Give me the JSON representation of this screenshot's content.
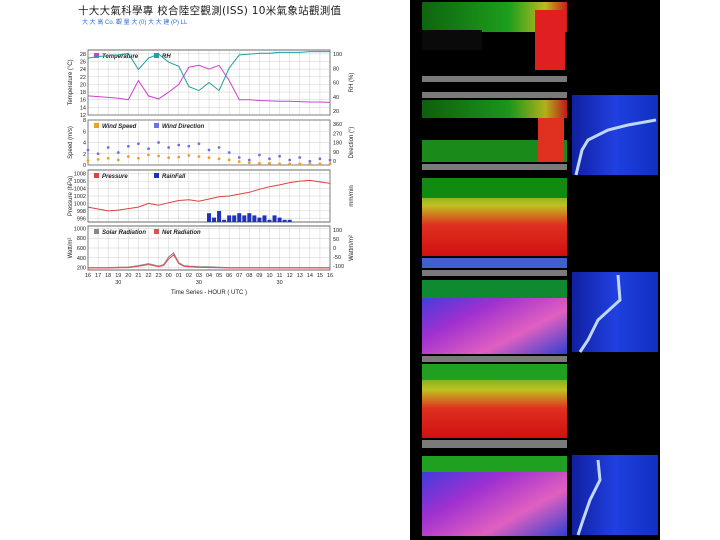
{
  "header": {
    "title": "十大大氣科學專 校合陸空觀測(ISS) 10米氣象站觀測值",
    "subtitle": "大 大 高   Co.    觀 量 大  (0)   大   大     建     (P)   LL"
  },
  "chart_data": [
    {
      "type": "line",
      "panel": "temperature-rh",
      "ylabel_left": "Temperature (°C)",
      "ylabel_right": "RH (%)",
      "legend": [
        "Temperature",
        "RH"
      ],
      "yticks_left": [
        28,
        26,
        24,
        22,
        20,
        18,
        16,
        14,
        12
      ],
      "yticks_right": [
        100,
        80,
        60,
        40,
        20
      ],
      "ylim_left": [
        12,
        29
      ],
      "ylim_right": [
        20,
        100
      ],
      "series": [
        {
          "name": "Temperature",
          "color": "#d040d0",
          "x": [
            0,
            4,
            8,
            12,
            16,
            20,
            24,
            28,
            32,
            36,
            40,
            44,
            48,
            52,
            56,
            60,
            64,
            68,
            72,
            76,
            80,
            84,
            88,
            92,
            96
          ],
          "y": [
            17,
            16.8,
            16.6,
            16.4,
            16,
            21,
            17,
            16.2,
            18,
            20,
            24.5,
            25,
            24,
            25,
            21,
            16,
            16,
            15.8,
            15.7,
            15.6,
            15.6,
            15.5,
            15.4,
            15.4,
            15.3
          ]
        },
        {
          "name": "RH",
          "color": "#20a0a0",
          "x": [
            0,
            4,
            8,
            12,
            16,
            20,
            24,
            28,
            32,
            36,
            40,
            44,
            48,
            52,
            56,
            60,
            64,
            68,
            72,
            76,
            80,
            84,
            88,
            92,
            96
          ],
          "y": [
            90,
            92,
            93,
            94,
            96,
            76,
            90,
            95,
            85,
            80,
            55,
            50,
            60,
            50,
            78,
            94,
            95,
            96,
            96,
            97,
            97,
            97,
            98,
            98,
            98
          ]
        }
      ]
    },
    {
      "type": "scatter",
      "panel": "wind",
      "ylabel_left": "Speed (m/s)",
      "ylabel_right": "Direction (°)",
      "legend": [
        "Wind Speed",
        "Wind Direction"
      ],
      "yticks_left": [
        8,
        6,
        4,
        2,
        0
      ],
      "yticks_right": [
        360,
        270,
        180,
        90,
        0
      ],
      "ylim_left": [
        0,
        8
      ],
      "ylim_right": [
        0,
        360
      ],
      "series": [
        {
          "name": "Wind Speed",
          "color": "#f0a020",
          "x": [
            0,
            4,
            8,
            12,
            16,
            20,
            24,
            28,
            32,
            36,
            40,
            44,
            48,
            52,
            56,
            60,
            64,
            68,
            72,
            76,
            80,
            84,
            88,
            92,
            96
          ],
          "y": [
            0.8,
            1,
            1.2,
            0.9,
            1.5,
            1.2,
            1.8,
            1.6,
            1.3,
            1.4,
            1.7,
            1.5,
            1.3,
            1.1,
            0.9,
            0.6,
            0.4,
            0.3,
            0.3,
            0.2,
            0.2,
            0.2,
            0.2,
            0.2,
            0.2
          ]
        },
        {
          "name": "Wind Direction",
          "color": "#7070e0",
          "x": [
            0,
            4,
            8,
            12,
            16,
            20,
            24,
            28,
            32,
            36,
            40,
            44,
            48,
            52,
            56,
            60,
            64,
            68,
            72,
            76,
            80,
            84,
            88,
            92,
            96
          ],
          "y": [
            120,
            90,
            140,
            100,
            150,
            170,
            130,
            180,
            140,
            160,
            150,
            170,
            120,
            140,
            100,
            60,
            40,
            80,
            50,
            70,
            40,
            60,
            30,
            50,
            40
          ]
        }
      ]
    },
    {
      "type": "line",
      "panel": "pressure-rainfall",
      "ylabel_left": "Pressure (hPa)",
      "ylabel_right": "mm/min",
      "legend": [
        "Pressure",
        "RainFall"
      ],
      "yticks_left": [
        1008,
        1006,
        1004,
        1002,
        1000,
        998,
        996
      ],
      "ylim_left": [
        995,
        1009
      ],
      "series": [
        {
          "name": "Pressure",
          "color": "#e04040",
          "x": [
            0,
            4,
            8,
            12,
            16,
            20,
            24,
            28,
            32,
            36,
            40,
            44,
            48,
            52,
            56,
            60,
            64,
            68,
            72,
            76,
            80,
            84,
            88,
            92,
            96
          ],
          "y": [
            999,
            998.5,
            998,
            998.2,
            998.6,
            999,
            1000,
            999.5,
            1000.2,
            1000.8,
            1001,
            1000.6,
            1001.2,
            1001.8,
            1002,
            1002.5,
            1003,
            1003.8,
            1004.5,
            1005,
            1005.6,
            1006,
            1006.2,
            1005.8,
            1005.4
          ]
        },
        {
          "name": "RainFall",
          "color": "#2030c0",
          "x": [
            48,
            50,
            52,
            54,
            56,
            58,
            60,
            62,
            64,
            66,
            68,
            70,
            72,
            74,
            76,
            78,
            80
          ],
          "y": [
            4,
            2,
            5,
            1,
            3,
            3,
            4,
            3,
            4,
            3,
            2,
            3,
            1,
            3,
            2,
            1,
            1
          ]
        }
      ]
    },
    {
      "type": "line",
      "panel": "radiation",
      "ylabel_left": "Watt/m²",
      "ylabel_right": "Wattm/m²",
      "legend": [
        "Solar Radiation",
        "Net Radiation"
      ],
      "yticks_left": [
        1000,
        800,
        600,
        400,
        200
      ],
      "yticks_right": [
        100,
        50,
        0,
        -50,
        -100
      ],
      "ylim_left": [
        150,
        1050
      ],
      "series": [
        {
          "name": "Solar Radiation",
          "color": "#888888",
          "x": [
            0,
            8,
            12,
            16,
            20,
            24,
            28,
            30,
            32,
            34,
            36,
            38,
            40,
            44,
            48,
            52,
            56,
            60,
            64,
            72,
            80,
            88,
            96
          ],
          "y": [
            200,
            200,
            205,
            210,
            240,
            280,
            230,
            260,
            420,
            500,
            300,
            240,
            230,
            220,
            215,
            205,
            200,
            200,
            200,
            200,
            200,
            200,
            200
          ]
        },
        {
          "name": "Net Radiation",
          "color": "#e05050",
          "x": [
            0,
            8,
            12,
            16,
            20,
            24,
            28,
            30,
            32,
            34,
            36,
            38,
            40,
            44,
            48,
            52,
            56,
            60,
            64,
            72,
            80,
            88,
            96
          ],
          "y": [
            190,
            190,
            195,
            200,
            225,
            260,
            220,
            240,
            380,
            460,
            280,
            225,
            215,
            205,
            200,
            195,
            190,
            190,
            190,
            190,
            190,
            190,
            190
          ]
        }
      ]
    }
  ],
  "x_axis": {
    "tick_labels": [
      "16",
      "17",
      "18",
      "19",
      "20",
      "21",
      "22",
      "23",
      "00",
      "01",
      "02",
      "03",
      "04",
      "05",
      "06",
      "07",
      "08",
      "09",
      "10",
      "11",
      "12",
      "13",
      "14",
      "15",
      "16"
    ],
    "date_labels": [
      "30",
      "30",
      "30"
    ],
    "xlabel": "Time Series - HOUR ( UTC )"
  },
  "colors": {
    "grid": "#b0b0b0",
    "frame": "#444444"
  }
}
